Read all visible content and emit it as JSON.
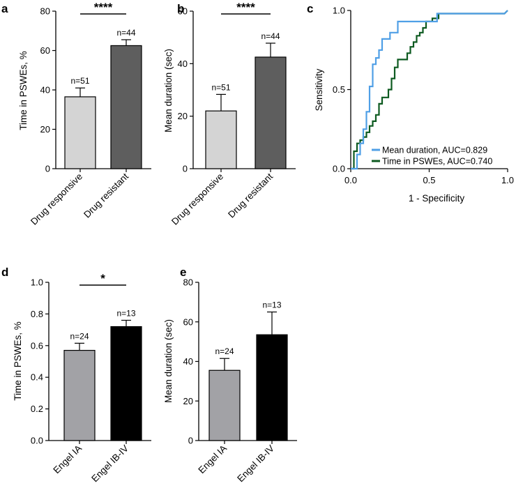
{
  "colors": {
    "light_gray": "#d4d4d4",
    "dark_gray": "#5e5e5e",
    "mid_gray": "#a2a2a6",
    "black": "#000000",
    "roc_blue": "#4f9fe6",
    "roc_green": "#0d5a20"
  },
  "chart_data": [
    {
      "panel": "a",
      "type": "bar",
      "categories": [
        "Drug responsive",
        "Drug resistant"
      ],
      "values": [
        36.5,
        62.5
      ],
      "errors": [
        4.5,
        3.0
      ],
      "n_labels": [
        "n=51",
        "n=44"
      ],
      "ylabel": "Time in PSWEs, %",
      "ylim": [
        0,
        80
      ],
      "yticks": [
        0,
        20,
        40,
        60,
        80
      ],
      "ytick_labels": [
        "0",
        "20",
        "40",
        "60",
        "80"
      ],
      "significance": "****",
      "bar_colors": [
        "light_gray",
        "dark_gray"
      ]
    },
    {
      "panel": "b",
      "type": "bar",
      "categories": [
        "Drug responsive",
        "Drug resistant"
      ],
      "values": [
        22,
        42.5
      ],
      "errors": [
        6.3,
        5.3
      ],
      "n_labels": [
        "n=51",
        "n=44"
      ],
      "ylabel": "Mean duration (sec)",
      "ylim": [
        0,
        60
      ],
      "yticks": [
        0,
        20,
        40,
        60
      ],
      "ytick_labels": [
        "0",
        "20",
        "40",
        "60"
      ],
      "significance": "****",
      "bar_colors": [
        "light_gray",
        "dark_gray"
      ]
    },
    {
      "panel": "c",
      "type": "line",
      "xlabel": "1 - Specificity",
      "ylabel": "Sensitivity",
      "xlim": [
        0,
        1
      ],
      "ylim": [
        0,
        1
      ],
      "xticks": [
        0,
        0.5,
        1
      ],
      "xtick_labels": [
        "0.0",
        "0.5",
        "1.0"
      ],
      "yticks": [
        0,
        0.5,
        1
      ],
      "ytick_labels": [
        "0.0",
        "0.5",
        "1.0"
      ],
      "legend_position": "bottom-right",
      "series": [
        {
          "name": "Mean duration, AUC=0.829",
          "color": "roc_blue",
          "x": [
            0,
            0.04,
            0.04,
            0.06,
            0.06,
            0.08,
            0.08,
            0.1,
            0.1,
            0.12,
            0.12,
            0.14,
            0.14,
            0.16,
            0.16,
            0.18,
            0.18,
            0.2,
            0.2,
            0.25,
            0.25,
            0.3,
            0.3,
            0.55,
            0.55,
            0.98,
            1.0
          ],
          "y": [
            0,
            0,
            0.09,
            0.09,
            0.16,
            0.16,
            0.25,
            0.25,
            0.36,
            0.36,
            0.52,
            0.52,
            0.66,
            0.66,
            0.7,
            0.7,
            0.75,
            0.75,
            0.82,
            0.82,
            0.86,
            0.86,
            0.93,
            0.93,
            0.98,
            0.98,
            1.0
          ]
        },
        {
          "name": "Time in PSWEs, AUC=0.740",
          "color": "roc_green",
          "x": [
            0,
            0.02,
            0.02,
            0.04,
            0.04,
            0.06,
            0.06,
            0.08,
            0.08,
            0.1,
            0.1,
            0.12,
            0.12,
            0.14,
            0.14,
            0.16,
            0.16,
            0.18,
            0.18,
            0.2,
            0.2,
            0.24,
            0.24,
            0.26,
            0.26,
            0.28,
            0.28,
            0.3,
            0.3,
            0.36,
            0.36,
            0.38,
            0.38,
            0.4,
            0.4,
            0.42,
            0.42,
            0.44,
            0.44,
            0.46,
            0.46,
            0.48,
            0.48,
            0.52,
            0.52,
            0.56,
            0.56,
            0.98,
            1.0
          ],
          "y": [
            0,
            0,
            0.11,
            0.11,
            0.16,
            0.16,
            0.18,
            0.18,
            0.2,
            0.2,
            0.23,
            0.23,
            0.27,
            0.27,
            0.3,
            0.3,
            0.34,
            0.34,
            0.41,
            0.41,
            0.45,
            0.45,
            0.5,
            0.5,
            0.57,
            0.57,
            0.64,
            0.64,
            0.69,
            0.69,
            0.73,
            0.73,
            0.77,
            0.77,
            0.8,
            0.8,
            0.84,
            0.84,
            0.86,
            0.86,
            0.89,
            0.89,
            0.93,
            0.93,
            0.95,
            0.95,
            0.98,
            0.98,
            1.0
          ]
        }
      ]
    },
    {
      "panel": "d",
      "type": "bar",
      "categories": [
        "Engel IA",
        "Engel IB-IV"
      ],
      "values": [
        0.57,
        0.72
      ],
      "errors": [
        0.045,
        0.04
      ],
      "n_labels": [
        "n=24",
        "n=13"
      ],
      "ylabel": "Time in PSWEs, %",
      "ylim": [
        0,
        1
      ],
      "yticks": [
        0,
        0.2,
        0.4,
        0.6,
        0.8,
        1.0
      ],
      "ytick_labels": [
        "0.0",
        "0.2",
        "0.4",
        "0.6",
        "0.8",
        "1.0"
      ],
      "significance": "*",
      "bar_colors": [
        "mid_gray",
        "black"
      ]
    },
    {
      "panel": "e",
      "type": "bar",
      "categories": [
        "Engel IA",
        "Engel IB-IV"
      ],
      "values": [
        35.5,
        53.5
      ],
      "errors": [
        6,
        11.5
      ],
      "n_labels": [
        "n=24",
        "n=13"
      ],
      "ylabel": "Mean duration (sec)",
      "ylim": [
        0,
        80
      ],
      "yticks": [
        0,
        20,
        40,
        60,
        80
      ],
      "ytick_labels": [
        "0",
        "20",
        "40",
        "60",
        "80"
      ],
      "significance": "",
      "bar_colors": [
        "mid_gray",
        "black"
      ]
    }
  ]
}
